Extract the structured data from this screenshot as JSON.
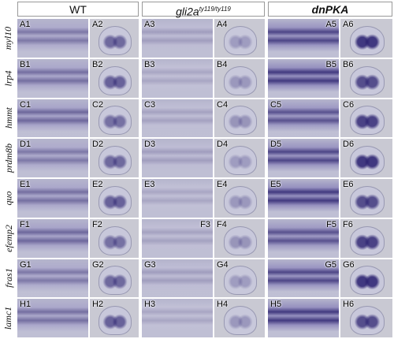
{
  "header": {
    "columns": [
      {
        "label": "WT"
      },
      {
        "label": "gli2a",
        "superscript": "ty119/ty119"
      },
      {
        "label": "dnPKA"
      }
    ]
  },
  "rows": [
    {
      "gene": "myl10",
      "panels": [
        "A1",
        "A2",
        "A3",
        "A4",
        "A5",
        "A6"
      ]
    },
    {
      "gene": "lrp4",
      "panels": [
        "B1",
        "B2",
        "B3",
        "B4",
        "B5",
        "B6"
      ]
    },
    {
      "gene": "hmmt",
      "panels": [
        "C1",
        "C2",
        "C3",
        "C4",
        "C5",
        "C6"
      ]
    },
    {
      "gene": "prdm8b",
      "panels": [
        "D1",
        "D2",
        "D3",
        "D4",
        "D5",
        "D6"
      ]
    },
    {
      "gene": "quo",
      "panels": [
        "E1",
        "E2",
        "E3",
        "E4",
        "E5",
        "E6"
      ]
    },
    {
      "gene": "efemp2",
      "panels": [
        "F1",
        "F2",
        "F3",
        "F4",
        "F5",
        "F6"
      ]
    },
    {
      "gene": "fras1",
      "panels": [
        "G1",
        "G2",
        "G3",
        "G4",
        "G5",
        "G6"
      ]
    },
    {
      "gene": "lamc1",
      "panels": [
        "H1",
        "H2",
        "H3",
        "H4",
        "H5",
        "H6"
      ]
    }
  ]
}
